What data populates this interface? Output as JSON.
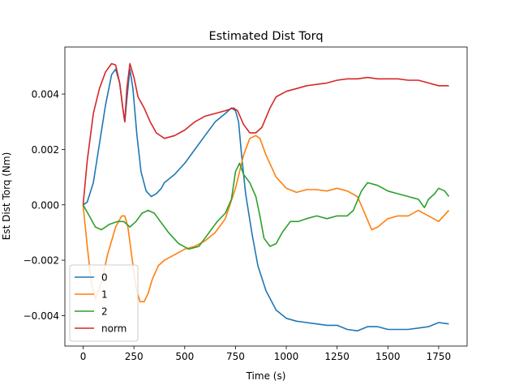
{
  "chart_data": {
    "type": "line",
    "title": "Estimated Dist Torq",
    "xlabel": "Time (s)",
    "ylabel": "Est Dist Torq (Nm)",
    "xlim": [
      -90,
      1890
    ],
    "ylim": [
      -0.0051,
      0.0057
    ],
    "xticks": [
      0,
      250,
      500,
      750,
      1000,
      1250,
      1500,
      1750
    ],
    "xtick_labels": [
      "0",
      "250",
      "500",
      "750",
      "1000",
      "1250",
      "1500",
      "1750"
    ],
    "yticks": [
      -0.004,
      -0.002,
      0.0,
      0.002,
      0.004
    ],
    "ytick_labels": [
      "−0.004",
      "−0.002",
      "0.000",
      "0.002",
      "0.004"
    ],
    "grid": false,
    "legend_position": "lower-left",
    "series": [
      {
        "name": "0",
        "color": "#1f77b4",
        "points": [
          [
            0,
            0
          ],
          [
            20,
            0.0001
          ],
          [
            50,
            0.0008
          ],
          [
            80,
            0.0022
          ],
          [
            110,
            0.0036
          ],
          [
            140,
            0.0047
          ],
          [
            160,
            0.0049
          ],
          [
            180,
            0.0044
          ],
          [
            195,
            0.0035
          ],
          [
            205,
            0.003
          ],
          [
            215,
            0.0038
          ],
          [
            230,
            0.0049
          ],
          [
            245,
            0.0042
          ],
          [
            265,
            0.0025
          ],
          [
            285,
            0.0012
          ],
          [
            310,
            0.0005
          ],
          [
            335,
            0.0003
          ],
          [
            360,
            0.0004
          ],
          [
            385,
            0.0006
          ],
          [
            400,
            0.0008
          ],
          [
            450,
            0.0011
          ],
          [
            500,
            0.0015
          ],
          [
            550,
            0.002
          ],
          [
            600,
            0.0025
          ],
          [
            650,
            0.003
          ],
          [
            700,
            0.0033
          ],
          [
            730,
            0.0035
          ],
          [
            750,
            0.0034
          ],
          [
            765,
            0.003
          ],
          [
            780,
            0.0018
          ],
          [
            800,
            0.0004
          ],
          [
            830,
            -0.001
          ],
          [
            860,
            -0.0022
          ],
          [
            900,
            -0.0031
          ],
          [
            950,
            -0.0038
          ],
          [
            1000,
            -0.0041
          ],
          [
            1050,
            -0.0042
          ],
          [
            1100,
            -0.00425
          ],
          [
            1150,
            -0.0043
          ],
          [
            1200,
            -0.00435
          ],
          [
            1250,
            -0.00435
          ],
          [
            1300,
            -0.0045
          ],
          [
            1350,
            -0.00455
          ],
          [
            1400,
            -0.0044
          ],
          [
            1450,
            -0.0044
          ],
          [
            1500,
            -0.0045
          ],
          [
            1550,
            -0.0045
          ],
          [
            1600,
            -0.0045
          ],
          [
            1650,
            -0.00445
          ],
          [
            1700,
            -0.0044
          ],
          [
            1750,
            -0.00425
          ],
          [
            1800,
            -0.0043
          ]
        ]
      },
      {
        "name": "1",
        "color": "#ff7f0e",
        "points": [
          [
            0,
            0
          ],
          [
            20,
            -0.0015
          ],
          [
            40,
            -0.0028
          ],
          [
            60,
            -0.0034
          ],
          [
            90,
            -0.0028
          ],
          [
            120,
            -0.0018
          ],
          [
            160,
            -0.0008
          ],
          [
            190,
            -0.0004
          ],
          [
            205,
            -0.0004
          ],
          [
            220,
            -0.0008
          ],
          [
            240,
            -0.0019
          ],
          [
            260,
            -0.003
          ],
          [
            280,
            -0.0035
          ],
          [
            300,
            -0.0035
          ],
          [
            320,
            -0.0032
          ],
          [
            340,
            -0.0027
          ],
          [
            370,
            -0.0022
          ],
          [
            400,
            -0.002
          ],
          [
            450,
            -0.0018
          ],
          [
            500,
            -0.0016
          ],
          [
            550,
            -0.0015
          ],
          [
            600,
            -0.0013
          ],
          [
            650,
            -0.001
          ],
          [
            700,
            -0.0005
          ],
          [
            750,
            0.0006
          ],
          [
            790,
            0.0018
          ],
          [
            820,
            0.0024
          ],
          [
            850,
            0.0025
          ],
          [
            870,
            0.0024
          ],
          [
            900,
            0.0018
          ],
          [
            950,
            0.001
          ],
          [
            1000,
            0.0006
          ],
          [
            1050,
            0.00045
          ],
          [
            1100,
            0.00055
          ],
          [
            1150,
            0.00055
          ],
          [
            1200,
            0.0005
          ],
          [
            1250,
            0.0006
          ],
          [
            1300,
            0.0005
          ],
          [
            1350,
            0.0003
          ],
          [
            1380,
            -0.0002
          ],
          [
            1420,
            -0.0009
          ],
          [
            1450,
            -0.0008
          ],
          [
            1500,
            -0.0005
          ],
          [
            1550,
            -0.0004
          ],
          [
            1600,
            -0.0004
          ],
          [
            1650,
            -0.0002
          ],
          [
            1700,
            -0.0004
          ],
          [
            1750,
            -0.0006
          ],
          [
            1800,
            -0.0002
          ]
        ]
      },
      {
        "name": "2",
        "color": "#2ca02c",
        "points": [
          [
            0,
            0
          ],
          [
            30,
            -0.0004
          ],
          [
            60,
            -0.0008
          ],
          [
            90,
            -0.0009
          ],
          [
            130,
            -0.0007
          ],
          [
            170,
            -0.0006
          ],
          [
            200,
            -0.0006
          ],
          [
            230,
            -0.0008
          ],
          [
            260,
            -0.0006
          ],
          [
            290,
            -0.0003
          ],
          [
            320,
            -0.0002
          ],
          [
            350,
            -0.0003
          ],
          [
            380,
            -0.0006
          ],
          [
            420,
            -0.001
          ],
          [
            470,
            -0.0014
          ],
          [
            520,
            -0.0016
          ],
          [
            570,
            -0.0015
          ],
          [
            620,
            -0.001
          ],
          [
            660,
            -0.0006
          ],
          [
            700,
            -0.0003
          ],
          [
            730,
            0.0002
          ],
          [
            750,
            0.0012
          ],
          [
            770,
            0.0015
          ],
          [
            790,
            0.0011
          ],
          [
            820,
            0.0008
          ],
          [
            850,
            0.0003
          ],
          [
            870,
            -0.0004
          ],
          [
            890,
            -0.0012
          ],
          [
            920,
            -0.0015
          ],
          [
            950,
            -0.0014
          ],
          [
            980,
            -0.001
          ],
          [
            1020,
            -0.0006
          ],
          [
            1060,
            -0.0006
          ],
          [
            1100,
            -0.0005
          ],
          [
            1150,
            -0.0004
          ],
          [
            1200,
            -0.0005
          ],
          [
            1250,
            -0.0004
          ],
          [
            1300,
            -0.0004
          ],
          [
            1330,
            -0.0002
          ],
          [
            1370,
            0.0005
          ],
          [
            1400,
            0.0008
          ],
          [
            1450,
            0.0007
          ],
          [
            1500,
            0.0005
          ],
          [
            1550,
            0.0004
          ],
          [
            1600,
            0.0003
          ],
          [
            1650,
            0.0002
          ],
          [
            1680,
            -0.0001
          ],
          [
            1700,
            0.0002
          ],
          [
            1730,
            0.0004
          ],
          [
            1750,
            0.0006
          ],
          [
            1780,
            0.0005
          ],
          [
            1800,
            0.0003
          ]
        ]
      },
      {
        "name": "norm",
        "color": "#d62728",
        "points": [
          [
            0,
            0
          ],
          [
            20,
            0.0016
          ],
          [
            50,
            0.0033
          ],
          [
            80,
            0.0042
          ],
          [
            110,
            0.0048
          ],
          [
            140,
            0.0051
          ],
          [
            160,
            0.00505
          ],
          [
            180,
            0.0044
          ],
          [
            195,
            0.0035
          ],
          [
            205,
            0.003
          ],
          [
            215,
            0.0042
          ],
          [
            230,
            0.0051
          ],
          [
            250,
            0.0046
          ],
          [
            270,
            0.0039
          ],
          [
            300,
            0.0035
          ],
          [
            330,
            0.003
          ],
          [
            360,
            0.0026
          ],
          [
            400,
            0.0024
          ],
          [
            450,
            0.0025
          ],
          [
            500,
            0.0027
          ],
          [
            550,
            0.003
          ],
          [
            600,
            0.0032
          ],
          [
            650,
            0.0033
          ],
          [
            700,
            0.0034
          ],
          [
            740,
            0.0035
          ],
          [
            760,
            0.0034
          ],
          [
            790,
            0.0029
          ],
          [
            820,
            0.0026
          ],
          [
            850,
            0.0026
          ],
          [
            880,
            0.0028
          ],
          [
            920,
            0.0035
          ],
          [
            950,
            0.0039
          ],
          [
            1000,
            0.0041
          ],
          [
            1050,
            0.0042
          ],
          [
            1100,
            0.0043
          ],
          [
            1150,
            0.00435
          ],
          [
            1200,
            0.0044
          ],
          [
            1250,
            0.0045
          ],
          [
            1300,
            0.00455
          ],
          [
            1350,
            0.00455
          ],
          [
            1400,
            0.0046
          ],
          [
            1450,
            0.00455
          ],
          [
            1500,
            0.00455
          ],
          [
            1550,
            0.00455
          ],
          [
            1600,
            0.0045
          ],
          [
            1650,
            0.0045
          ],
          [
            1700,
            0.0044
          ],
          [
            1750,
            0.0043
          ],
          [
            1800,
            0.0043
          ]
        ]
      }
    ]
  }
}
